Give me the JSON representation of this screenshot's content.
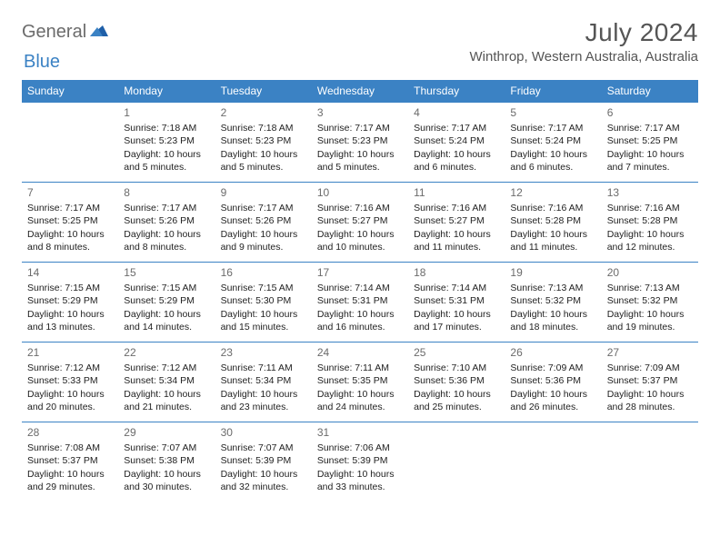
{
  "logo": {
    "text1": "General",
    "text2": "Blue"
  },
  "header": {
    "month_title": "July 2024",
    "location": "Winthrop, Western Australia, Australia"
  },
  "colors": {
    "header_bg": "#3b82c4",
    "header_text": "#ffffff",
    "border": "#3b82c4",
    "daynum": "#6b6b6b",
    "body_text": "#222222",
    "logo_gray": "#6b6b6b",
    "logo_blue": "#3b82c4"
  },
  "daynames": [
    "Sunday",
    "Monday",
    "Tuesday",
    "Wednesday",
    "Thursday",
    "Friday",
    "Saturday"
  ],
  "weeks": [
    [
      null,
      {
        "n": "1",
        "sunrise": "Sunrise: 7:18 AM",
        "sunset": "Sunset: 5:23 PM",
        "day1": "Daylight: 10 hours",
        "day2": "and 5 minutes."
      },
      {
        "n": "2",
        "sunrise": "Sunrise: 7:18 AM",
        "sunset": "Sunset: 5:23 PM",
        "day1": "Daylight: 10 hours",
        "day2": "and 5 minutes."
      },
      {
        "n": "3",
        "sunrise": "Sunrise: 7:17 AM",
        "sunset": "Sunset: 5:23 PM",
        "day1": "Daylight: 10 hours",
        "day2": "and 5 minutes."
      },
      {
        "n": "4",
        "sunrise": "Sunrise: 7:17 AM",
        "sunset": "Sunset: 5:24 PM",
        "day1": "Daylight: 10 hours",
        "day2": "and 6 minutes."
      },
      {
        "n": "5",
        "sunrise": "Sunrise: 7:17 AM",
        "sunset": "Sunset: 5:24 PM",
        "day1": "Daylight: 10 hours",
        "day2": "and 6 minutes."
      },
      {
        "n": "6",
        "sunrise": "Sunrise: 7:17 AM",
        "sunset": "Sunset: 5:25 PM",
        "day1": "Daylight: 10 hours",
        "day2": "and 7 minutes."
      }
    ],
    [
      {
        "n": "7",
        "sunrise": "Sunrise: 7:17 AM",
        "sunset": "Sunset: 5:25 PM",
        "day1": "Daylight: 10 hours",
        "day2": "and 8 minutes."
      },
      {
        "n": "8",
        "sunrise": "Sunrise: 7:17 AM",
        "sunset": "Sunset: 5:26 PM",
        "day1": "Daylight: 10 hours",
        "day2": "and 8 minutes."
      },
      {
        "n": "9",
        "sunrise": "Sunrise: 7:17 AM",
        "sunset": "Sunset: 5:26 PM",
        "day1": "Daylight: 10 hours",
        "day2": "and 9 minutes."
      },
      {
        "n": "10",
        "sunrise": "Sunrise: 7:16 AM",
        "sunset": "Sunset: 5:27 PM",
        "day1": "Daylight: 10 hours",
        "day2": "and 10 minutes."
      },
      {
        "n": "11",
        "sunrise": "Sunrise: 7:16 AM",
        "sunset": "Sunset: 5:27 PM",
        "day1": "Daylight: 10 hours",
        "day2": "and 11 minutes."
      },
      {
        "n": "12",
        "sunrise": "Sunrise: 7:16 AM",
        "sunset": "Sunset: 5:28 PM",
        "day1": "Daylight: 10 hours",
        "day2": "and 11 minutes."
      },
      {
        "n": "13",
        "sunrise": "Sunrise: 7:16 AM",
        "sunset": "Sunset: 5:28 PM",
        "day1": "Daylight: 10 hours",
        "day2": "and 12 minutes."
      }
    ],
    [
      {
        "n": "14",
        "sunrise": "Sunrise: 7:15 AM",
        "sunset": "Sunset: 5:29 PM",
        "day1": "Daylight: 10 hours",
        "day2": "and 13 minutes."
      },
      {
        "n": "15",
        "sunrise": "Sunrise: 7:15 AM",
        "sunset": "Sunset: 5:29 PM",
        "day1": "Daylight: 10 hours",
        "day2": "and 14 minutes."
      },
      {
        "n": "16",
        "sunrise": "Sunrise: 7:15 AM",
        "sunset": "Sunset: 5:30 PM",
        "day1": "Daylight: 10 hours",
        "day2": "and 15 minutes."
      },
      {
        "n": "17",
        "sunrise": "Sunrise: 7:14 AM",
        "sunset": "Sunset: 5:31 PM",
        "day1": "Daylight: 10 hours",
        "day2": "and 16 minutes."
      },
      {
        "n": "18",
        "sunrise": "Sunrise: 7:14 AM",
        "sunset": "Sunset: 5:31 PM",
        "day1": "Daylight: 10 hours",
        "day2": "and 17 minutes."
      },
      {
        "n": "19",
        "sunrise": "Sunrise: 7:13 AM",
        "sunset": "Sunset: 5:32 PM",
        "day1": "Daylight: 10 hours",
        "day2": "and 18 minutes."
      },
      {
        "n": "20",
        "sunrise": "Sunrise: 7:13 AM",
        "sunset": "Sunset: 5:32 PM",
        "day1": "Daylight: 10 hours",
        "day2": "and 19 minutes."
      }
    ],
    [
      {
        "n": "21",
        "sunrise": "Sunrise: 7:12 AM",
        "sunset": "Sunset: 5:33 PM",
        "day1": "Daylight: 10 hours",
        "day2": "and 20 minutes."
      },
      {
        "n": "22",
        "sunrise": "Sunrise: 7:12 AM",
        "sunset": "Sunset: 5:34 PM",
        "day1": "Daylight: 10 hours",
        "day2": "and 21 minutes."
      },
      {
        "n": "23",
        "sunrise": "Sunrise: 7:11 AM",
        "sunset": "Sunset: 5:34 PM",
        "day1": "Daylight: 10 hours",
        "day2": "and 23 minutes."
      },
      {
        "n": "24",
        "sunrise": "Sunrise: 7:11 AM",
        "sunset": "Sunset: 5:35 PM",
        "day1": "Daylight: 10 hours",
        "day2": "and 24 minutes."
      },
      {
        "n": "25",
        "sunrise": "Sunrise: 7:10 AM",
        "sunset": "Sunset: 5:36 PM",
        "day1": "Daylight: 10 hours",
        "day2": "and 25 minutes."
      },
      {
        "n": "26",
        "sunrise": "Sunrise: 7:09 AM",
        "sunset": "Sunset: 5:36 PM",
        "day1": "Daylight: 10 hours",
        "day2": "and 26 minutes."
      },
      {
        "n": "27",
        "sunrise": "Sunrise: 7:09 AM",
        "sunset": "Sunset: 5:37 PM",
        "day1": "Daylight: 10 hours",
        "day2": "and 28 minutes."
      }
    ],
    [
      {
        "n": "28",
        "sunrise": "Sunrise: 7:08 AM",
        "sunset": "Sunset: 5:37 PM",
        "day1": "Daylight: 10 hours",
        "day2": "and 29 minutes."
      },
      {
        "n": "29",
        "sunrise": "Sunrise: 7:07 AM",
        "sunset": "Sunset: 5:38 PM",
        "day1": "Daylight: 10 hours",
        "day2": "and 30 minutes."
      },
      {
        "n": "30",
        "sunrise": "Sunrise: 7:07 AM",
        "sunset": "Sunset: 5:39 PM",
        "day1": "Daylight: 10 hours",
        "day2": "and 32 minutes."
      },
      {
        "n": "31",
        "sunrise": "Sunrise: 7:06 AM",
        "sunset": "Sunset: 5:39 PM",
        "day1": "Daylight: 10 hours",
        "day2": "and 33 minutes."
      },
      null,
      null,
      null
    ]
  ]
}
